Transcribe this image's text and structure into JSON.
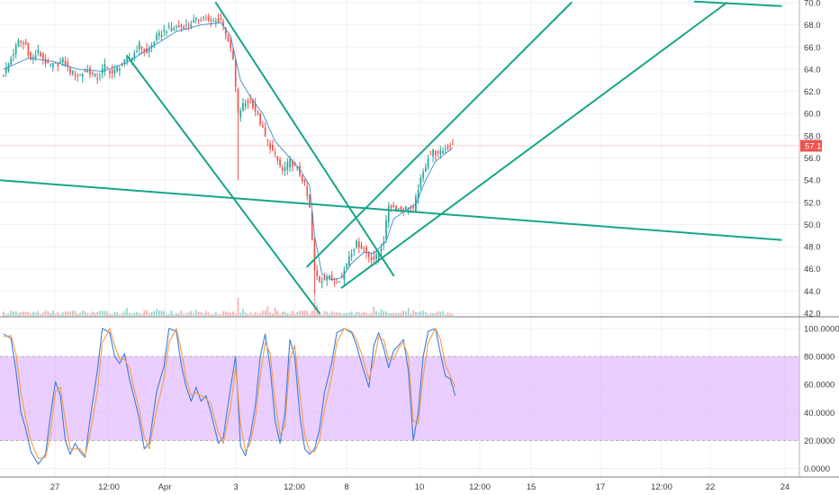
{
  "colors": {
    "up": "#26a69a",
    "down": "#ef5350",
    "trendline": "#17a589",
    "ma": "#2e86c1",
    "stoch_k": "#3b7dd8",
    "stoch_d": "#f39c4a",
    "stoch_band": "#d9a6ff",
    "price_badge": "#ef5350",
    "grid": "#eef1f5",
    "axis": "#b2b5be",
    "text": "#3c3c3c"
  },
  "x_tick_labels": [
    "27",
    "12:00",
    "Apr",
    "3",
    "12:00",
    "8",
    "10",
    "12:00",
    "15",
    "17",
    "12:00",
    "22",
    "24"
  ],
  "price_ticks": [
    "42.0",
    "44.0",
    "46.0",
    "48.0",
    "50.0",
    "52.0",
    "54.0",
    "56.0",
    "58.0",
    "60.0",
    "62.0",
    "64.0",
    "66.0",
    "68.0",
    "70.0"
  ],
  "stoch_ticks": [
    "0.0000",
    "20.0000",
    "40.0000",
    "60.0000",
    "80.0000",
    "100.0000"
  ],
  "last_price_label": "57.1",
  "chart_data": [
    {
      "type": "candlestick",
      "title": "",
      "grid": true,
      "x_index_range": [
        0,
        190
      ],
      "ylim": [
        42,
        70
      ],
      "last_price": 57.1,
      "anchors": [
        [
          0,
          63.5
        ],
        [
          3,
          65.0
        ],
        [
          6,
          66.5
        ],
        [
          9,
          66.2
        ],
        [
          11,
          64.8
        ],
        [
          14,
          65.6
        ],
        [
          18,
          64.3
        ],
        [
          21,
          64.4
        ],
        [
          24,
          64.8
        ],
        [
          27,
          63.8
        ],
        [
          30,
          63.4
        ],
        [
          34,
          63.9
        ],
        [
          38,
          63.2
        ],
        [
          41,
          64.3
        ],
        [
          44,
          63.6
        ],
        [
          48,
          64.5
        ],
        [
          52,
          65.1
        ],
        [
          55,
          66.2
        ],
        [
          58,
          65.4
        ],
        [
          62,
          66.9
        ],
        [
          66,
          67.6
        ],
        [
          70,
          67.8
        ],
        [
          74,
          67.9
        ],
        [
          78,
          68.4
        ],
        [
          81,
          68.7
        ],
        [
          84,
          68.2
        ],
        [
          88,
          68.5
        ],
        [
          91,
          66.6
        ],
        [
          93,
          64.8
        ],
        [
          95,
          59.9
        ],
        [
          97,
          60.8
        ],
        [
          100,
          61.2
        ],
        [
          103,
          59.8
        ],
        [
          106,
          57.9
        ],
        [
          110,
          56.2
        ],
        [
          113,
          54.8
        ],
        [
          116,
          55.7
        ],
        [
          119,
          55.0
        ],
        [
          122,
          53.6
        ],
        [
          124,
          51.4
        ],
        [
          126,
          45.7
        ],
        [
          128,
          44.9
        ],
        [
          131,
          45.3
        ],
        [
          134,
          44.9
        ],
        [
          137,
          45.2
        ],
        [
          140,
          47.2
        ],
        [
          143,
          48.3
        ],
        [
          146,
          47.8
        ],
        [
          148,
          47.1
        ],
        [
          150,
          46.9
        ],
        [
          152,
          47.4
        ],
        [
          154,
          48.6
        ],
        [
          156,
          51.7
        ],
        [
          158,
          51.6
        ],
        [
          161,
          51.4
        ],
        [
          164,
          51.5
        ],
        [
          166,
          51.3
        ],
        [
          168,
          53.3
        ],
        [
          170,
          54.6
        ],
        [
          172,
          56.1
        ],
        [
          174,
          56.6
        ],
        [
          176,
          56.3
        ],
        [
          178,
          56.7
        ],
        [
          180,
          57.0
        ],
        [
          182,
          57.4
        ]
      ],
      "ma_series": [
        [
          0,
          64.0
        ],
        [
          10,
          65.0
        ],
        [
          20,
          64.7
        ],
        [
          30,
          64.0
        ],
        [
          40,
          63.8
        ],
        [
          50,
          64.6
        ],
        [
          60,
          66.0
        ],
        [
          70,
          67.4
        ],
        [
          80,
          68.0
        ],
        [
          88,
          68.2
        ],
        [
          92,
          67.0
        ],
        [
          96,
          63.0
        ],
        [
          100,
          61.5
        ],
        [
          105,
          60.0
        ],
        [
          110,
          57.5
        ],
        [
          116,
          56.0
        ],
        [
          120,
          55.0
        ],
        [
          124,
          53.5
        ],
        [
          126,
          49.0
        ],
        [
          129,
          45.5
        ],
        [
          133,
          45.0
        ],
        [
          137,
          45.2
        ],
        [
          141,
          46.5
        ],
        [
          146,
          47.5
        ],
        [
          150,
          47.4
        ],
        [
          155,
          48.5
        ],
        [
          158,
          50.5
        ],
        [
          163,
          51.3
        ],
        [
          167,
          51.8
        ],
        [
          171,
          54.0
        ],
        [
          175,
          55.7
        ],
        [
          179,
          56.4
        ],
        [
          182,
          56.9
        ]
      ],
      "spike_lows": [
        [
          95,
          54.0
        ],
        [
          126,
          43.8
        ]
      ],
      "spike_highs": [
        [
          126,
          48.8
        ]
      ],
      "volume_spikes": [
        [
          95,
          20
        ],
        [
          97,
          8
        ],
        [
          126,
          30
        ],
        [
          127,
          12
        ],
        [
          107,
          11
        ],
        [
          110,
          9
        ],
        [
          150,
          10
        ],
        [
          153,
          7
        ],
        [
          164,
          9
        ],
        [
          50,
          9
        ],
        [
          62,
          8
        ],
        [
          78,
          7
        ]
      ],
      "trendlines": [
        {
          "from": [
            -2,
            54.0
          ],
          "to": [
            315,
            48.6
          ]
        },
        {
          "from": [
            50,
            65.2
          ],
          "to": [
            128,
            42.0
          ]
        },
        {
          "from": [
            86,
            70.0
          ],
          "to": [
            158,
            45.4
          ]
        },
        {
          "from": [
            123,
            46.2
          ],
          "to": [
            230,
            70.0
          ]
        },
        {
          "from": [
            137,
            44.3
          ],
          "to": [
            293,
            70.0
          ]
        },
        {
          "from": [
            280,
            70.1
          ],
          "to": [
            315,
            69.7
          ]
        }
      ]
    },
    {
      "type": "line",
      "title": "",
      "ylim": [
        -5,
        104
      ],
      "band": [
        20,
        80
      ],
      "series": [
        {
          "color": "#3b7dd8",
          "values": [
            [
              0,
              96
            ],
            [
              3,
              93
            ],
            [
              5,
              70
            ],
            [
              7,
              40
            ],
            [
              9,
              28
            ],
            [
              11,
              12
            ],
            [
              14,
              3
            ],
            [
              17,
              10
            ],
            [
              19,
              38
            ],
            [
              21,
              62
            ],
            [
              23,
              52
            ],
            [
              25,
              20
            ],
            [
              27,
              10
            ],
            [
              29,
              18
            ],
            [
              31,
              12
            ],
            [
              33,
              8
            ],
            [
              35,
              35
            ],
            [
              38,
              70
            ],
            [
              40,
              100
            ],
            [
              43,
              97
            ],
            [
              45,
              80
            ],
            [
              47,
              75
            ],
            [
              49,
              82
            ],
            [
              51,
              64
            ],
            [
              53,
              50
            ],
            [
              55,
              35
            ],
            [
              57,
              14
            ],
            [
              59,
              18
            ],
            [
              62,
              55
            ],
            [
              65,
              73
            ],
            [
              67,
              100
            ],
            [
              70,
              98
            ],
            [
              72,
              74
            ],
            [
              74,
              58
            ],
            [
              76,
              48
            ],
            [
              78,
              58
            ],
            [
              80,
              48
            ],
            [
              82,
              52
            ],
            [
              84,
              40
            ],
            [
              87,
              18
            ],
            [
              89,
              22
            ],
            [
              92,
              58
            ],
            [
              94,
              80
            ],
            [
              96,
              16
            ],
            [
              98,
              9
            ],
            [
              100,
              24
            ],
            [
              102,
              45
            ],
            [
              104,
              80
            ],
            [
              106,
              96
            ],
            [
              108,
              72
            ],
            [
              110,
              34
            ],
            [
              112,
              18
            ],
            [
              114,
              40
            ],
            [
              116,
              92
            ],
            [
              118,
              80
            ],
            [
              120,
              38
            ],
            [
              122,
              14
            ],
            [
              124,
              10
            ],
            [
              126,
              14
            ],
            [
              128,
              28
            ],
            [
              130,
              54
            ],
            [
              133,
              76
            ],
            [
              135,
              97
            ],
            [
              138,
              100
            ],
            [
              141,
              97
            ],
            [
              143,
              88
            ],
            [
              145,
              75
            ],
            [
              148,
              58
            ],
            [
              150,
              88
            ],
            [
              152,
              97
            ],
            [
              154,
              86
            ],
            [
              156,
              72
            ],
            [
              158,
              84
            ],
            [
              160,
              88
            ],
            [
              162,
              92
            ],
            [
              164,
              70
            ],
            [
              166,
              20
            ],
            [
              168,
              40
            ],
            [
              170,
              80
            ],
            [
              172,
              98
            ],
            [
              175,
              100
            ],
            [
              177,
              82
            ],
            [
              179,
              66
            ],
            [
              181,
              64
            ],
            [
              183,
              52
            ]
          ]
        },
        {
          "color": "#f39c4a",
          "values": [
            [
              0,
              94
            ],
            [
              3,
              95
            ],
            [
              5,
              82
            ],
            [
              7,
              54
            ],
            [
              9,
              36
            ],
            [
              11,
              20
            ],
            [
              14,
              7
            ],
            [
              17,
              8
            ],
            [
              19,
              25
            ],
            [
              21,
              55
            ],
            [
              23,
              58
            ],
            [
              25,
              34
            ],
            [
              27,
              14
            ],
            [
              29,
              14
            ],
            [
              31,
              14
            ],
            [
              33,
              9
            ],
            [
              35,
              24
            ],
            [
              38,
              55
            ],
            [
              40,
              90
            ],
            [
              43,
              100
            ],
            [
              45,
              88
            ],
            [
              47,
              78
            ],
            [
              49,
              78
            ],
            [
              51,
              72
            ],
            [
              53,
              56
            ],
            [
              55,
              42
            ],
            [
              57,
              22
            ],
            [
              59,
              14
            ],
            [
              62,
              42
            ],
            [
              65,
              64
            ],
            [
              67,
              90
            ],
            [
              70,
              100
            ],
            [
              72,
              84
            ],
            [
              74,
              64
            ],
            [
              76,
              52
            ],
            [
              78,
              54
            ],
            [
              80,
              52
            ],
            [
              82,
              50
            ],
            [
              84,
              46
            ],
            [
              87,
              26
            ],
            [
              89,
              18
            ],
            [
              92,
              44
            ],
            [
              94,
              72
            ],
            [
              96,
              32
            ],
            [
              98,
              12
            ],
            [
              100,
              18
            ],
            [
              102,
              36
            ],
            [
              104,
              66
            ],
            [
              106,
              90
            ],
            [
              108,
              82
            ],
            [
              110,
              48
            ],
            [
              112,
              24
            ],
            [
              114,
              30
            ],
            [
              116,
              78
            ],
            [
              118,
              88
            ],
            [
              120,
              54
            ],
            [
              122,
              24
            ],
            [
              124,
              12
            ],
            [
              126,
              12
            ],
            [
              128,
              20
            ],
            [
              130,
              42
            ],
            [
              133,
              66
            ],
            [
              135,
              90
            ],
            [
              138,
              100
            ],
            [
              141,
              98
            ],
            [
              143,
              92
            ],
            [
              145,
              82
            ],
            [
              148,
              64
            ],
            [
              150,
              76
            ],
            [
              152,
              94
            ],
            [
              154,
              92
            ],
            [
              156,
              78
            ],
            [
              158,
              78
            ],
            [
              160,
              86
            ],
            [
              162,
              90
            ],
            [
              164,
              80
            ],
            [
              166,
              34
            ],
            [
              168,
              32
            ],
            [
              170,
              66
            ],
            [
              172,
              90
            ],
            [
              175,
              100
            ],
            [
              177,
              92
            ],
            [
              179,
              74
            ],
            [
              181,
              66
            ],
            [
              183,
              58
            ]
          ]
        }
      ]
    }
  ]
}
